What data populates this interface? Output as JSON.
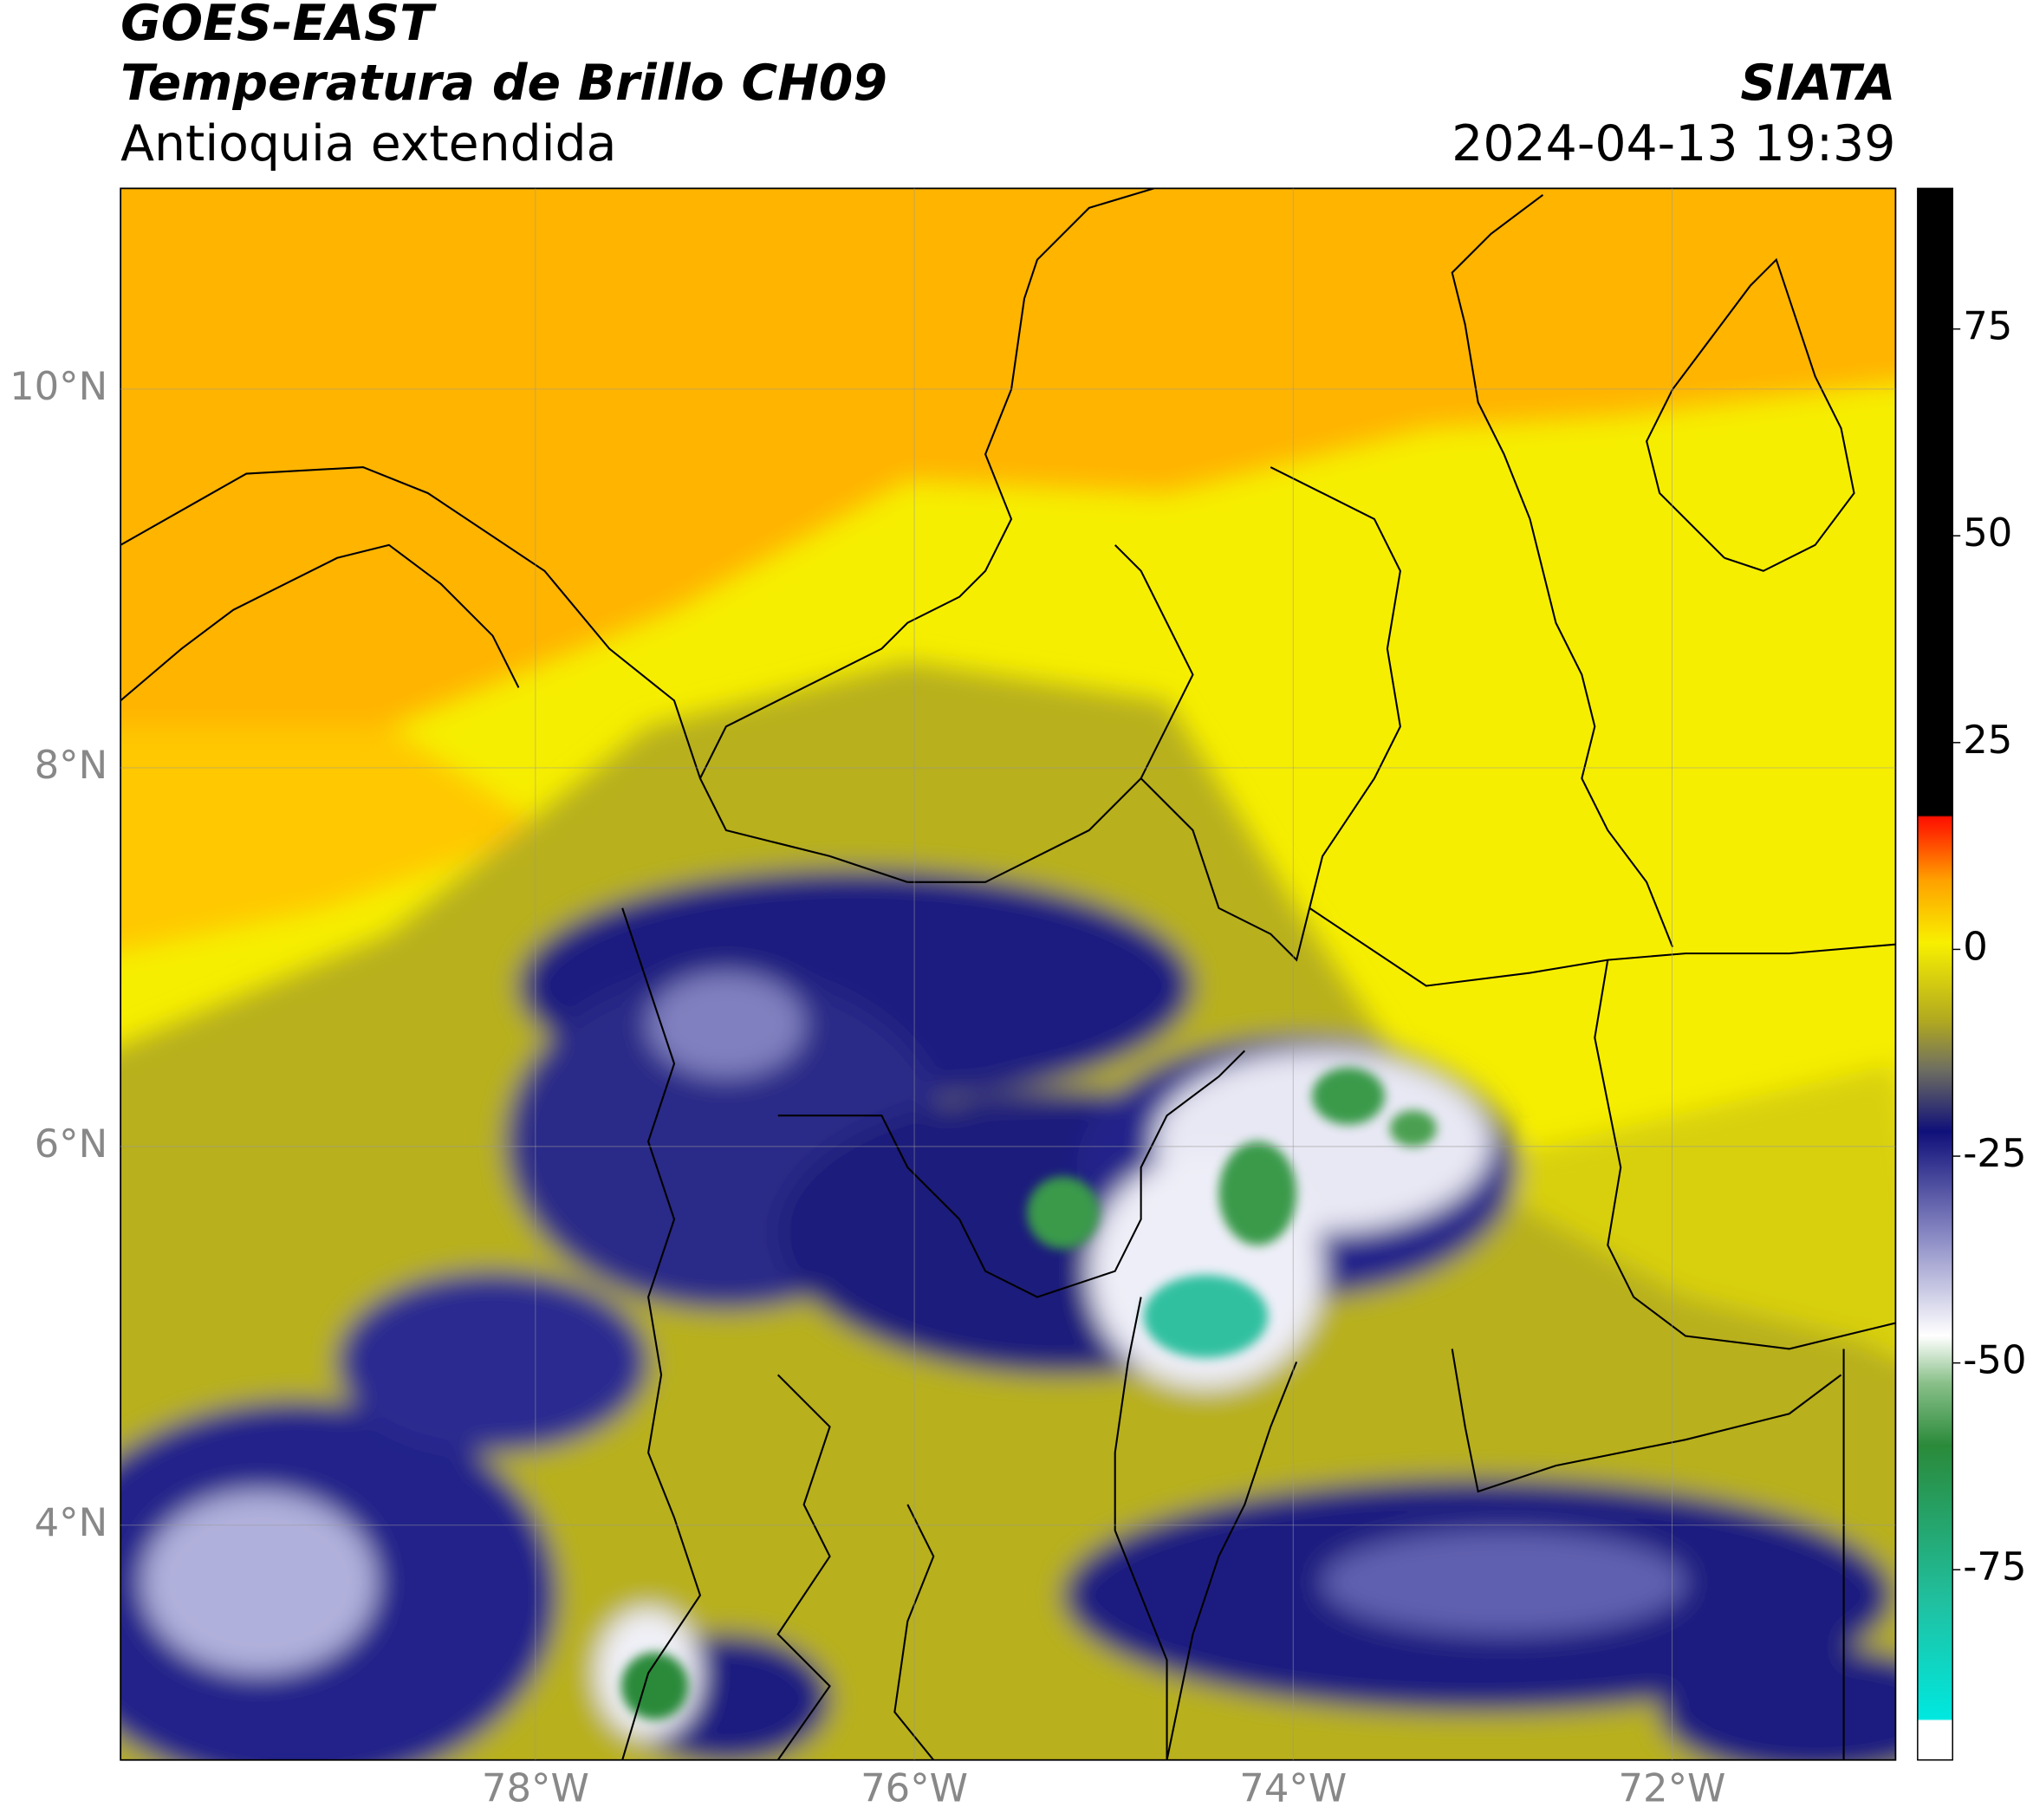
{
  "header": {
    "title": "GOES-EAST",
    "subtitle": "Temperatura de Brillo CH09",
    "region": "Antioquia extendida",
    "source": "SIATA",
    "datetime": "2024-04-13 19:39"
  },
  "map": {
    "xlim": [
      -80.19,
      -70.82
    ],
    "ylim": [
      2.76,
      11.06
    ],
    "xticks": [
      {
        "value": -78,
        "label": "78°W"
      },
      {
        "value": -76,
        "label": "76°W"
      },
      {
        "value": -74,
        "label": "74°W"
      },
      {
        "value": -72,
        "label": "72°W"
      }
    ],
    "yticks": [
      {
        "value": 10,
        "label": "10°N"
      },
      {
        "value": 8,
        "label": "8°N"
      },
      {
        "value": 6,
        "label": "6°N"
      },
      {
        "value": 4,
        "label": "4°N"
      }
    ],
    "grid": true
  },
  "colorbar": {
    "ylim": [
      -98,
      92
    ],
    "yticks": [
      75,
      50,
      25,
      0,
      -25,
      -50,
      -75
    ]
  }
}
